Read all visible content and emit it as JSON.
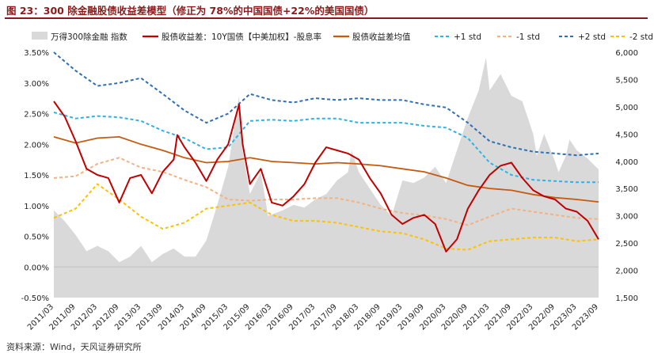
{
  "figure": {
    "title": "图 23：300 除金融股债收益差模型（修正为 78%的中国国债+22%的美国国债）",
    "source": "资料来源：Wind，天风证券研究所"
  },
  "colors": {
    "index_area": "#d9d9d9",
    "spread": "#c00000",
    "mean": "#c55a11",
    "plus1": "#2eb2e6",
    "minus1": "#f4b183",
    "plus2": "#2f6eb5",
    "minus2": "#ffc000",
    "title": "#8b1a1a"
  },
  "chart_data": {
    "type": "line",
    "grid": false,
    "legend_position": "top",
    "xlabel": "",
    "ylabel": "",
    "x_ticks": [
      "2011/03",
      "2011/09",
      "2012/03",
      "2012/09",
      "2013/03",
      "2013/09",
      "2014/03",
      "2014/09",
      "2015/03",
      "2015/09",
      "2016/03",
      "2016/09",
      "2017/03",
      "2017/09",
      "2018/03",
      "2018/09",
      "2019/03",
      "2019/09",
      "2020/03",
      "2020/09",
      "2021/03",
      "2021/09",
      "2022/03",
      "2022/09",
      "2023/03",
      "2023/09"
    ],
    "y_left": {
      "ticks": [
        "-0.50%",
        "0.00%",
        "0.50%",
        "1.00%",
        "1.50%",
        "2.00%",
        "2.50%",
        "3.00%",
        "3.50%"
      ],
      "ylim": [
        -0.5,
        3.5
      ],
      "unit": "%"
    },
    "y_right": {
      "ticks": [
        "1,500",
        "2,000",
        "2,500",
        "3,000",
        "3,500",
        "4,000",
        "4,500",
        "5,000",
        "5,500",
        "6,000"
      ],
      "ylim": [
        1500,
        6000
      ]
    },
    "series": [
      {
        "name": "万得300除金融 指数",
        "kind": "area",
        "axis": "right",
        "points": [
          [
            "2011/03",
            3100
          ],
          [
            "2011/06",
            2900
          ],
          [
            "2011/09",
            2650
          ],
          [
            "2011/12",
            2350
          ],
          [
            "2012/03",
            2450
          ],
          [
            "2012/06",
            2350
          ],
          [
            "2012/09",
            2150
          ],
          [
            "2012/12",
            2250
          ],
          [
            "2013/03",
            2450
          ],
          [
            "2013/06",
            2150
          ],
          [
            "2013/09",
            2300
          ],
          [
            "2013/12",
            2400
          ],
          [
            "2014/03",
            2250
          ],
          [
            "2014/06",
            2250
          ],
          [
            "2014/09",
            2550
          ],
          [
            "2014/12",
            3200
          ],
          [
            "2015/03",
            3900
          ],
          [
            "2015/06",
            5200
          ],
          [
            "2015/07",
            4200
          ],
          [
            "2015/09",
            3400
          ],
          [
            "2015/12",
            3800
          ],
          [
            "2016/02",
            3000
          ],
          [
            "2016/06",
            3100
          ],
          [
            "2016/09",
            3200
          ],
          [
            "2016/12",
            3150
          ],
          [
            "2017/03",
            3300
          ],
          [
            "2017/06",
            3400
          ],
          [
            "2017/09",
            3650
          ],
          [
            "2017/12",
            3800
          ],
          [
            "2018/01",
            4200
          ],
          [
            "2018/03",
            3800
          ],
          [
            "2018/06",
            3500
          ],
          [
            "2018/09",
            3200
          ],
          [
            "2018/12",
            3000
          ],
          [
            "2019/03",
            3650
          ],
          [
            "2019/06",
            3600
          ],
          [
            "2019/09",
            3700
          ],
          [
            "2019/12",
            3900
          ],
          [
            "2020/03",
            3600
          ],
          [
            "2020/06",
            4200
          ],
          [
            "2020/09",
            4800
          ],
          [
            "2020/12",
            5300
          ],
          [
            "2021/02",
            5900
          ],
          [
            "2021/03",
            5300
          ],
          [
            "2021/06",
            5600
          ],
          [
            "2021/09",
            5200
          ],
          [
            "2021/12",
            5100
          ],
          [
            "2022/03",
            4500
          ],
          [
            "2022/04",
            4100
          ],
          [
            "2022/06",
            4500
          ],
          [
            "2022/09",
            4000
          ],
          [
            "2022/10",
            3800
          ],
          [
            "2022/12",
            4100
          ],
          [
            "2023/01",
            4400
          ],
          [
            "2023/03",
            4200
          ],
          [
            "2023/06",
            4050
          ],
          [
            "2023/09",
            3850
          ]
        ]
      },
      {
        "name": "股债收益差：10Y国债【中美加权】-股息率",
        "kind": "line",
        "axis": "left",
        "points": [
          [
            "2011/03",
            2.7
          ],
          [
            "2011/06",
            2.45
          ],
          [
            "2011/09",
            2.05
          ],
          [
            "2011/12",
            1.6
          ],
          [
            "2012/03",
            1.5
          ],
          [
            "2012/06",
            1.45
          ],
          [
            "2012/09",
            1.05
          ],
          [
            "2012/12",
            1.45
          ],
          [
            "2013/03",
            1.5
          ],
          [
            "2013/06",
            1.2
          ],
          [
            "2013/09",
            1.55
          ],
          [
            "2013/12",
            1.75
          ],
          [
            "2014/01",
            2.15
          ],
          [
            "2014/03",
            1.95
          ],
          [
            "2014/06",
            1.7
          ],
          [
            "2014/09",
            1.4
          ],
          [
            "2014/12",
            1.75
          ],
          [
            "2015/03",
            2.0
          ],
          [
            "2015/06",
            2.65
          ],
          [
            "2015/07",
            2.0
          ],
          [
            "2015/09",
            1.35
          ],
          [
            "2015/12",
            1.6
          ],
          [
            "2016/03",
            1.05
          ],
          [
            "2016/06",
            1.0
          ],
          [
            "2016/09",
            1.15
          ],
          [
            "2016/12",
            1.35
          ],
          [
            "2017/03",
            1.7
          ],
          [
            "2017/06",
            1.95
          ],
          [
            "2017/09",
            1.9
          ],
          [
            "2017/12",
            1.85
          ],
          [
            "2018/03",
            1.75
          ],
          [
            "2018/06",
            1.45
          ],
          [
            "2018/09",
            1.2
          ],
          [
            "2018/12",
            0.85
          ],
          [
            "2019/03",
            0.7
          ],
          [
            "2019/06",
            0.8
          ],
          [
            "2019/09",
            0.85
          ],
          [
            "2019/12",
            0.7
          ],
          [
            "2020/03",
            0.25
          ],
          [
            "2020/06",
            0.45
          ],
          [
            "2020/09",
            0.95
          ],
          [
            "2020/12",
            1.25
          ],
          [
            "2021/03",
            1.5
          ],
          [
            "2021/06",
            1.65
          ],
          [
            "2021/09",
            1.7
          ],
          [
            "2021/12",
            1.45
          ],
          [
            "2022/03",
            1.25
          ],
          [
            "2022/06",
            1.15
          ],
          [
            "2022/09",
            1.1
          ],
          [
            "2022/12",
            0.95
          ],
          [
            "2023/03",
            0.9
          ],
          [
            "2023/06",
            0.75
          ],
          [
            "2023/09",
            0.45
          ]
        ]
      },
      {
        "name": "股债收益差均值",
        "kind": "line",
        "axis": "left",
        "points": [
          [
            "2011/03",
            2.12
          ],
          [
            "2011/09",
            2.02
          ],
          [
            "2012/03",
            2.1
          ],
          [
            "2012/09",
            2.12
          ],
          [
            "2013/03",
            2.0
          ],
          [
            "2013/09",
            1.9
          ],
          [
            "2014/03",
            1.78
          ],
          [
            "2014/09",
            1.7
          ],
          [
            "2015/03",
            1.72
          ],
          [
            "2015/09",
            1.78
          ],
          [
            "2016/03",
            1.72
          ],
          [
            "2016/09",
            1.7
          ],
          [
            "2017/03",
            1.68
          ],
          [
            "2017/09",
            1.7
          ],
          [
            "2018/03",
            1.68
          ],
          [
            "2018/09",
            1.65
          ],
          [
            "2019/03",
            1.6
          ],
          [
            "2019/09",
            1.55
          ],
          [
            "2020/03",
            1.45
          ],
          [
            "2020/09",
            1.33
          ],
          [
            "2021/03",
            1.28
          ],
          [
            "2021/09",
            1.25
          ],
          [
            "2022/03",
            1.18
          ],
          [
            "2022/09",
            1.13
          ],
          [
            "2023/03",
            1.1
          ],
          [
            "2023/09",
            1.06
          ]
        ]
      },
      {
        "name": "+1 std",
        "kind": "dashed",
        "axis": "left",
        "points": [
          [
            "2011/03",
            2.52
          ],
          [
            "2011/09",
            2.42
          ],
          [
            "2012/03",
            2.46
          ],
          [
            "2012/09",
            2.44
          ],
          [
            "2013/03",
            2.38
          ],
          [
            "2013/09",
            2.22
          ],
          [
            "2014/03",
            2.1
          ],
          [
            "2014/09",
            1.92
          ],
          [
            "2015/03",
            1.95
          ],
          [
            "2015/09",
            2.38
          ],
          [
            "2016/03",
            2.4
          ],
          [
            "2016/09",
            2.38
          ],
          [
            "2017/03",
            2.42
          ],
          [
            "2017/09",
            2.42
          ],
          [
            "2018/03",
            2.35
          ],
          [
            "2018/09",
            2.35
          ],
          [
            "2019/03",
            2.35
          ],
          [
            "2019/09",
            2.3
          ],
          [
            "2020/03",
            2.27
          ],
          [
            "2020/09",
            2.1
          ],
          [
            "2021/03",
            1.7
          ],
          [
            "2021/09",
            1.5
          ],
          [
            "2022/03",
            1.42
          ],
          [
            "2022/09",
            1.4
          ],
          [
            "2023/03",
            1.38
          ],
          [
            "2023/09",
            1.38
          ]
        ]
      },
      {
        "name": "-1 std",
        "kind": "dashed",
        "axis": "left",
        "points": [
          [
            "2011/03",
            1.45
          ],
          [
            "2011/09",
            1.48
          ],
          [
            "2012/03",
            1.68
          ],
          [
            "2012/09",
            1.78
          ],
          [
            "2013/03",
            1.62
          ],
          [
            "2013/09",
            1.55
          ],
          [
            "2014/03",
            1.42
          ],
          [
            "2014/09",
            1.3
          ],
          [
            "2015/03",
            1.1
          ],
          [
            "2015/09",
            1.08
          ],
          [
            "2016/03",
            1.1
          ],
          [
            "2016/09",
            1.1
          ],
          [
            "2017/03",
            1.12
          ],
          [
            "2017/09",
            1.12
          ],
          [
            "2018/03",
            1.05
          ],
          [
            "2018/09",
            0.95
          ],
          [
            "2019/03",
            0.88
          ],
          [
            "2019/09",
            0.84
          ],
          [
            "2020/03",
            0.78
          ],
          [
            "2020/09",
            0.68
          ],
          [
            "2021/03",
            0.82
          ],
          [
            "2021/09",
            0.95
          ],
          [
            "2022/03",
            0.9
          ],
          [
            "2022/09",
            0.85
          ],
          [
            "2023/03",
            0.8
          ],
          [
            "2023/09",
            0.78
          ]
        ]
      },
      {
        "name": "+2 std",
        "kind": "dashed",
        "axis": "left",
        "points": [
          [
            "2011/03",
            3.5
          ],
          [
            "2011/09",
            3.2
          ],
          [
            "2012/03",
            2.95
          ],
          [
            "2012/09",
            3.0
          ],
          [
            "2013/03",
            3.08
          ],
          [
            "2013/09",
            2.82
          ],
          [
            "2014/03",
            2.55
          ],
          [
            "2014/09",
            2.35
          ],
          [
            "2015/03",
            2.5
          ],
          [
            "2015/09",
            2.82
          ],
          [
            "2016/03",
            2.72
          ],
          [
            "2016/09",
            2.68
          ],
          [
            "2017/03",
            2.75
          ],
          [
            "2017/09",
            2.72
          ],
          [
            "2018/03",
            2.75
          ],
          [
            "2018/09",
            2.72
          ],
          [
            "2019/03",
            2.72
          ],
          [
            "2019/09",
            2.65
          ],
          [
            "2020/03",
            2.6
          ],
          [
            "2020/09",
            2.35
          ],
          [
            "2021/03",
            2.05
          ],
          [
            "2021/09",
            1.95
          ],
          [
            "2022/03",
            1.88
          ],
          [
            "2022/09",
            1.85
          ],
          [
            "2023/03",
            1.82
          ],
          [
            "2023/09",
            1.85
          ]
        ]
      },
      {
        "name": "-2 std",
        "kind": "dashed",
        "axis": "left",
        "points": [
          [
            "2011/03",
            0.8
          ],
          [
            "2011/09",
            0.95
          ],
          [
            "2012/03",
            1.35
          ],
          [
            "2012/09",
            1.1
          ],
          [
            "2013/03",
            0.82
          ],
          [
            "2013/09",
            0.62
          ],
          [
            "2014/03",
            0.72
          ],
          [
            "2014/09",
            0.95
          ],
          [
            "2015/03",
            1.0
          ],
          [
            "2015/09",
            1.05
          ],
          [
            "2016/03",
            0.85
          ],
          [
            "2016/09",
            0.75
          ],
          [
            "2017/03",
            0.75
          ],
          [
            "2017/09",
            0.72
          ],
          [
            "2018/03",
            0.65
          ],
          [
            "2018/09",
            0.58
          ],
          [
            "2019/03",
            0.55
          ],
          [
            "2019/09",
            0.45
          ],
          [
            "2020/03",
            0.3
          ],
          [
            "2020/09",
            0.28
          ],
          [
            "2021/03",
            0.42
          ],
          [
            "2021/09",
            0.45
          ],
          [
            "2022/03",
            0.48
          ],
          [
            "2022/09",
            0.48
          ],
          [
            "2023/03",
            0.42
          ],
          [
            "2023/09",
            0.45
          ]
        ]
      }
    ]
  }
}
